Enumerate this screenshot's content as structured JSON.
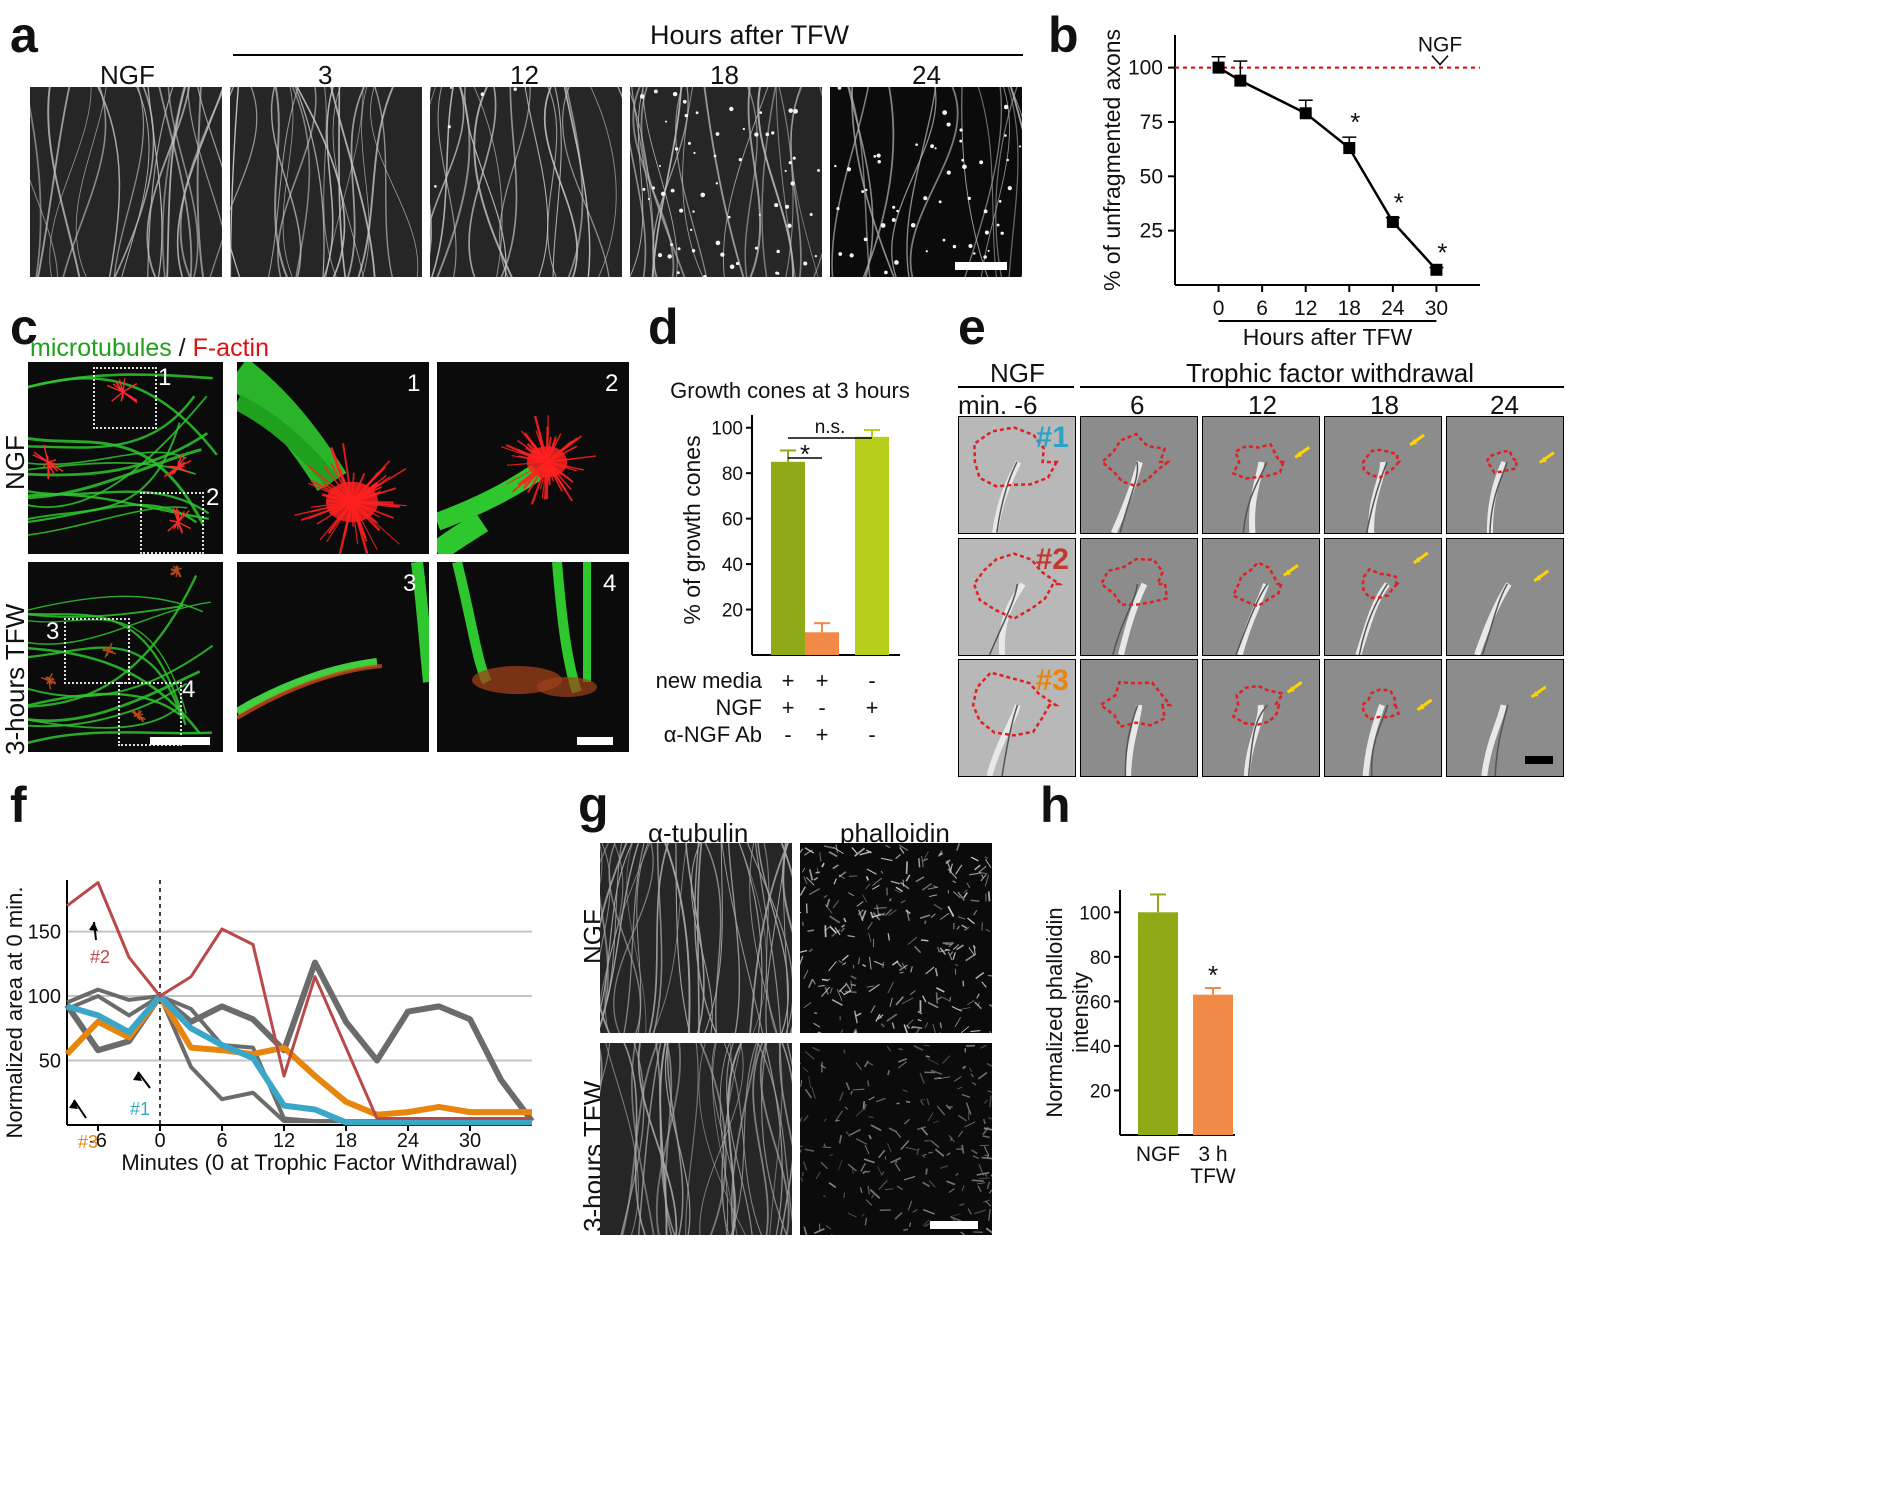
{
  "panel_letters": {
    "a": "a",
    "b": "b",
    "c": "c",
    "d": "d",
    "e": "e",
    "f": "f",
    "g": "g",
    "h": "h"
  },
  "panel_a": {
    "group_title": "Hours after TFW",
    "column_labels": [
      "NGF",
      "3",
      "12",
      "18",
      "24"
    ]
  },
  "panel_c": {
    "title_green": "microtubules",
    "title_sep": " / ",
    "title_red": "F-actin",
    "colors": {
      "green": "#1fa01f",
      "red": "#e01010"
    },
    "row_labels": [
      "NGF",
      "3-hours TFW"
    ],
    "inset_numbers": [
      "1",
      "2",
      "3",
      "4"
    ]
  },
  "panel_e": {
    "left_header": "NGF",
    "group_header": "Trophic factor withdrawal",
    "column_labels": [
      "min. -6",
      "6",
      "12",
      "18",
      "24"
    ],
    "row_tags": [
      "#1",
      "#2",
      "#3"
    ],
    "tag_colors": [
      "#2aa3c8",
      "#c0392b",
      "#e8850c"
    ]
  },
  "panel_g": {
    "column_labels": [
      "α-tubulin",
      "phalloidin"
    ],
    "row_labels": [
      "NGF",
      "3-hours TFW"
    ]
  },
  "chart_data": [
    {
      "panel": "b",
      "type": "line",
      "xlabel": "Hours after TFW",
      "ylabel": "% of unfragmented axons",
      "x_ticks": [
        "0",
        "6",
        "12",
        "18",
        "24",
        "30"
      ],
      "y_ticks": [
        "25",
        "50",
        "75",
        "100"
      ],
      "xlim": [
        -6,
        36
      ],
      "ylim": [
        0,
        115
      ],
      "series": [
        {
          "x": [
            0,
            3,
            12,
            18,
            24,
            30
          ],
          "y": [
            100,
            94,
            79,
            63,
            29,
            7
          ],
          "err": [
            5,
            9,
            6,
            5,
            2,
            1
          ]
        }
      ],
      "significance": [
        18,
        24,
        30
      ],
      "significance_label": "*",
      "reference": {
        "label": "NGF",
        "y": 100,
        "color": "#e00000"
      }
    },
    {
      "panel": "d",
      "type": "bar",
      "title": "Growth cones at 3 hours",
      "ylabel": "% of growth cones",
      "y_ticks": [
        "20",
        "40",
        "60",
        "80",
        "100"
      ],
      "ylim": [
        0,
        110
      ],
      "values": [
        85,
        10,
        96
      ],
      "err": [
        5,
        4,
        3
      ],
      "colors": [
        "#8faa16",
        "#f08a46",
        "#b7ce1a"
      ],
      "brackets": [
        {
          "from": 0,
          "to": 1,
          "label": "*"
        },
        {
          "from": 0,
          "to": 2,
          "label": "n.s."
        }
      ],
      "condition_rows": [
        {
          "label": "new media",
          "values": [
            "+",
            "+",
            "-"
          ]
        },
        {
          "label": "NGF",
          "values": [
            "+",
            "-",
            "+"
          ]
        },
        {
          "label": "α-NGF Ab",
          "values": [
            "-",
            "+",
            "-"
          ]
        }
      ]
    },
    {
      "panel": "f",
      "type": "line",
      "xlabel": "Minutes (0 at Trophic Factor Withdrawal)",
      "ylabel": "Normalized area at 0 min.",
      "x_ticks": [
        "-6",
        "0",
        "6",
        "12",
        "18",
        "24",
        "30"
      ],
      "y_ticks": [
        "50",
        "100",
        "150"
      ],
      "xlim": [
        -9,
        36
      ],
      "ylim": [
        0,
        190
      ],
      "x": [
        -9,
        -6,
        -3,
        0,
        3,
        6,
        9,
        12,
        15,
        18,
        21,
        24,
        27,
        30,
        33,
        36
      ],
      "series": [
        {
          "name": "#1",
          "color": "#3aa6c8",
          "width": 6,
          "y": [
            92,
            85,
            72,
            100,
            75,
            62,
            52,
            15,
            12,
            2,
            2,
            2,
            2,
            2,
            2,
            2
          ]
        },
        {
          "name": "#2",
          "color": "#b84a4a",
          "width": 3,
          "y": [
            170,
            188,
            130,
            100,
            115,
            152,
            140,
            38,
            115,
            60,
            5,
            5,
            5,
            5,
            5,
            5
          ]
        },
        {
          "name": "#3",
          "color": "#e8850c",
          "width": 6,
          "y": [
            55,
            80,
            68,
            100,
            60,
            58,
            55,
            60,
            38,
            18,
            8,
            10,
            14,
            10,
            10,
            10
          ]
        },
        {
          "color": "#6b6b6b",
          "width": 6,
          "y": [
            93,
            58,
            65,
            100,
            80,
            92,
            82,
            58,
            126,
            80,
            50,
            88,
            92,
            82,
            35,
            3
          ]
        },
        {
          "color": "#6b6b6b",
          "width": 4,
          "y": [
            95,
            105,
            97,
            100,
            45,
            20,
            25,
            3,
            3,
            3,
            3,
            3,
            3,
            3,
            3,
            3
          ]
        },
        {
          "color": "#6b6b6b",
          "width": 4,
          "y": [
            90,
            100,
            85,
            100,
            90,
            62,
            60,
            5,
            3,
            3,
            3,
            3,
            3,
            3,
            3,
            3
          ]
        }
      ],
      "annotations": [
        "#2",
        "#3",
        "#1"
      ]
    },
    {
      "panel": "h",
      "type": "bar",
      "ylabel": "Normalized phalloidin intensity",
      "categories": [
        "NGF",
        "3 h TFW"
      ],
      "y_ticks": [
        "20",
        "40",
        "60",
        "80",
        "100"
      ],
      "ylim": [
        0,
        110
      ],
      "values": [
        100,
        63
      ],
      "err": [
        8,
        3
      ],
      "colors": [
        "#8faa16",
        "#f08a46"
      ],
      "significance": [
        1
      ],
      "significance_label": "*"
    }
  ]
}
